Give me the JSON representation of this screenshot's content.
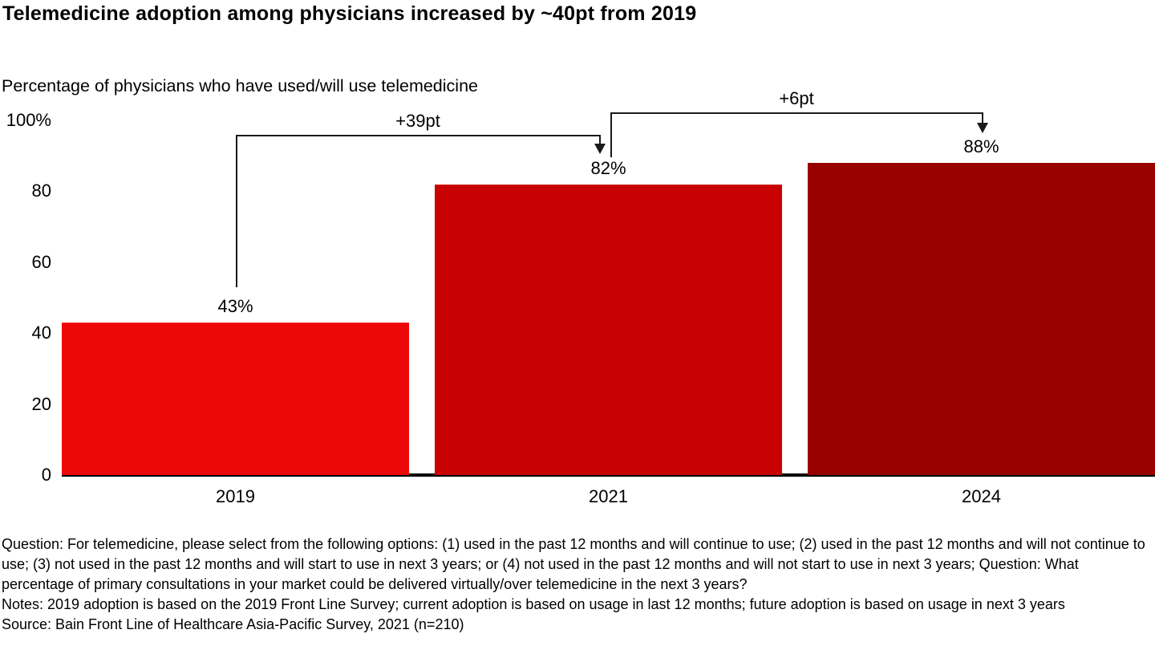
{
  "title": "Telemedicine adoption among physicians increased by ~40pt from 2019",
  "subtitle": "Percentage of physicians who have used/will use telemedicine",
  "chart_data": {
    "type": "bar",
    "categories": [
      "2019",
      "2021",
      "2024"
    ],
    "values": [
      43,
      82,
      88
    ],
    "value_labels": [
      "43%",
      "82%",
      "88%"
    ],
    "bar_colors": [
      "#ED0808",
      "#C80202",
      "#980000"
    ],
    "title": "Telemedicine adoption among physicians increased by ~40pt from 2019",
    "xlabel": "",
    "ylabel": "Percentage of physicians who have used/will use telemedicine",
    "ylim": [
      0,
      100
    ],
    "yticks": [
      {
        "value": 100,
        "label": "100%"
      },
      {
        "value": 80,
        "label": "80"
      },
      {
        "value": 60,
        "label": "60"
      },
      {
        "value": 40,
        "label": "40"
      },
      {
        "value": 20,
        "label": "20"
      },
      {
        "value": 0,
        "label": "0"
      }
    ],
    "grid": false,
    "legend": "none",
    "annotations": [
      {
        "label": "+39pt",
        "from": "2019",
        "to": "2021"
      },
      {
        "label": "+6pt",
        "from": "2021",
        "to": "2024"
      }
    ]
  },
  "footer": {
    "question": "Question: For telemedicine, please select from the following options: (1) used in the past 12 months and will continue to use; (2) used in the past 12 months and will not continue to use; (3) not used in the past 12 months and will start to use in next 3 years; or (4) not used in the past 12 months and will not start to use in next 3 years; Question: What percentage of primary consultations in your market could be delivered virtually/over telemedicine in the next 3 years?",
    "notes": "Notes: 2019 adoption is based on the 2019 Front Line Survey; current adoption is based on usage in last 12 months; future adoption is based on usage in next 3 years",
    "source": "Source: Bain Front Line of Healthcare Asia-Pacific Survey, 2021 (n=210)"
  }
}
